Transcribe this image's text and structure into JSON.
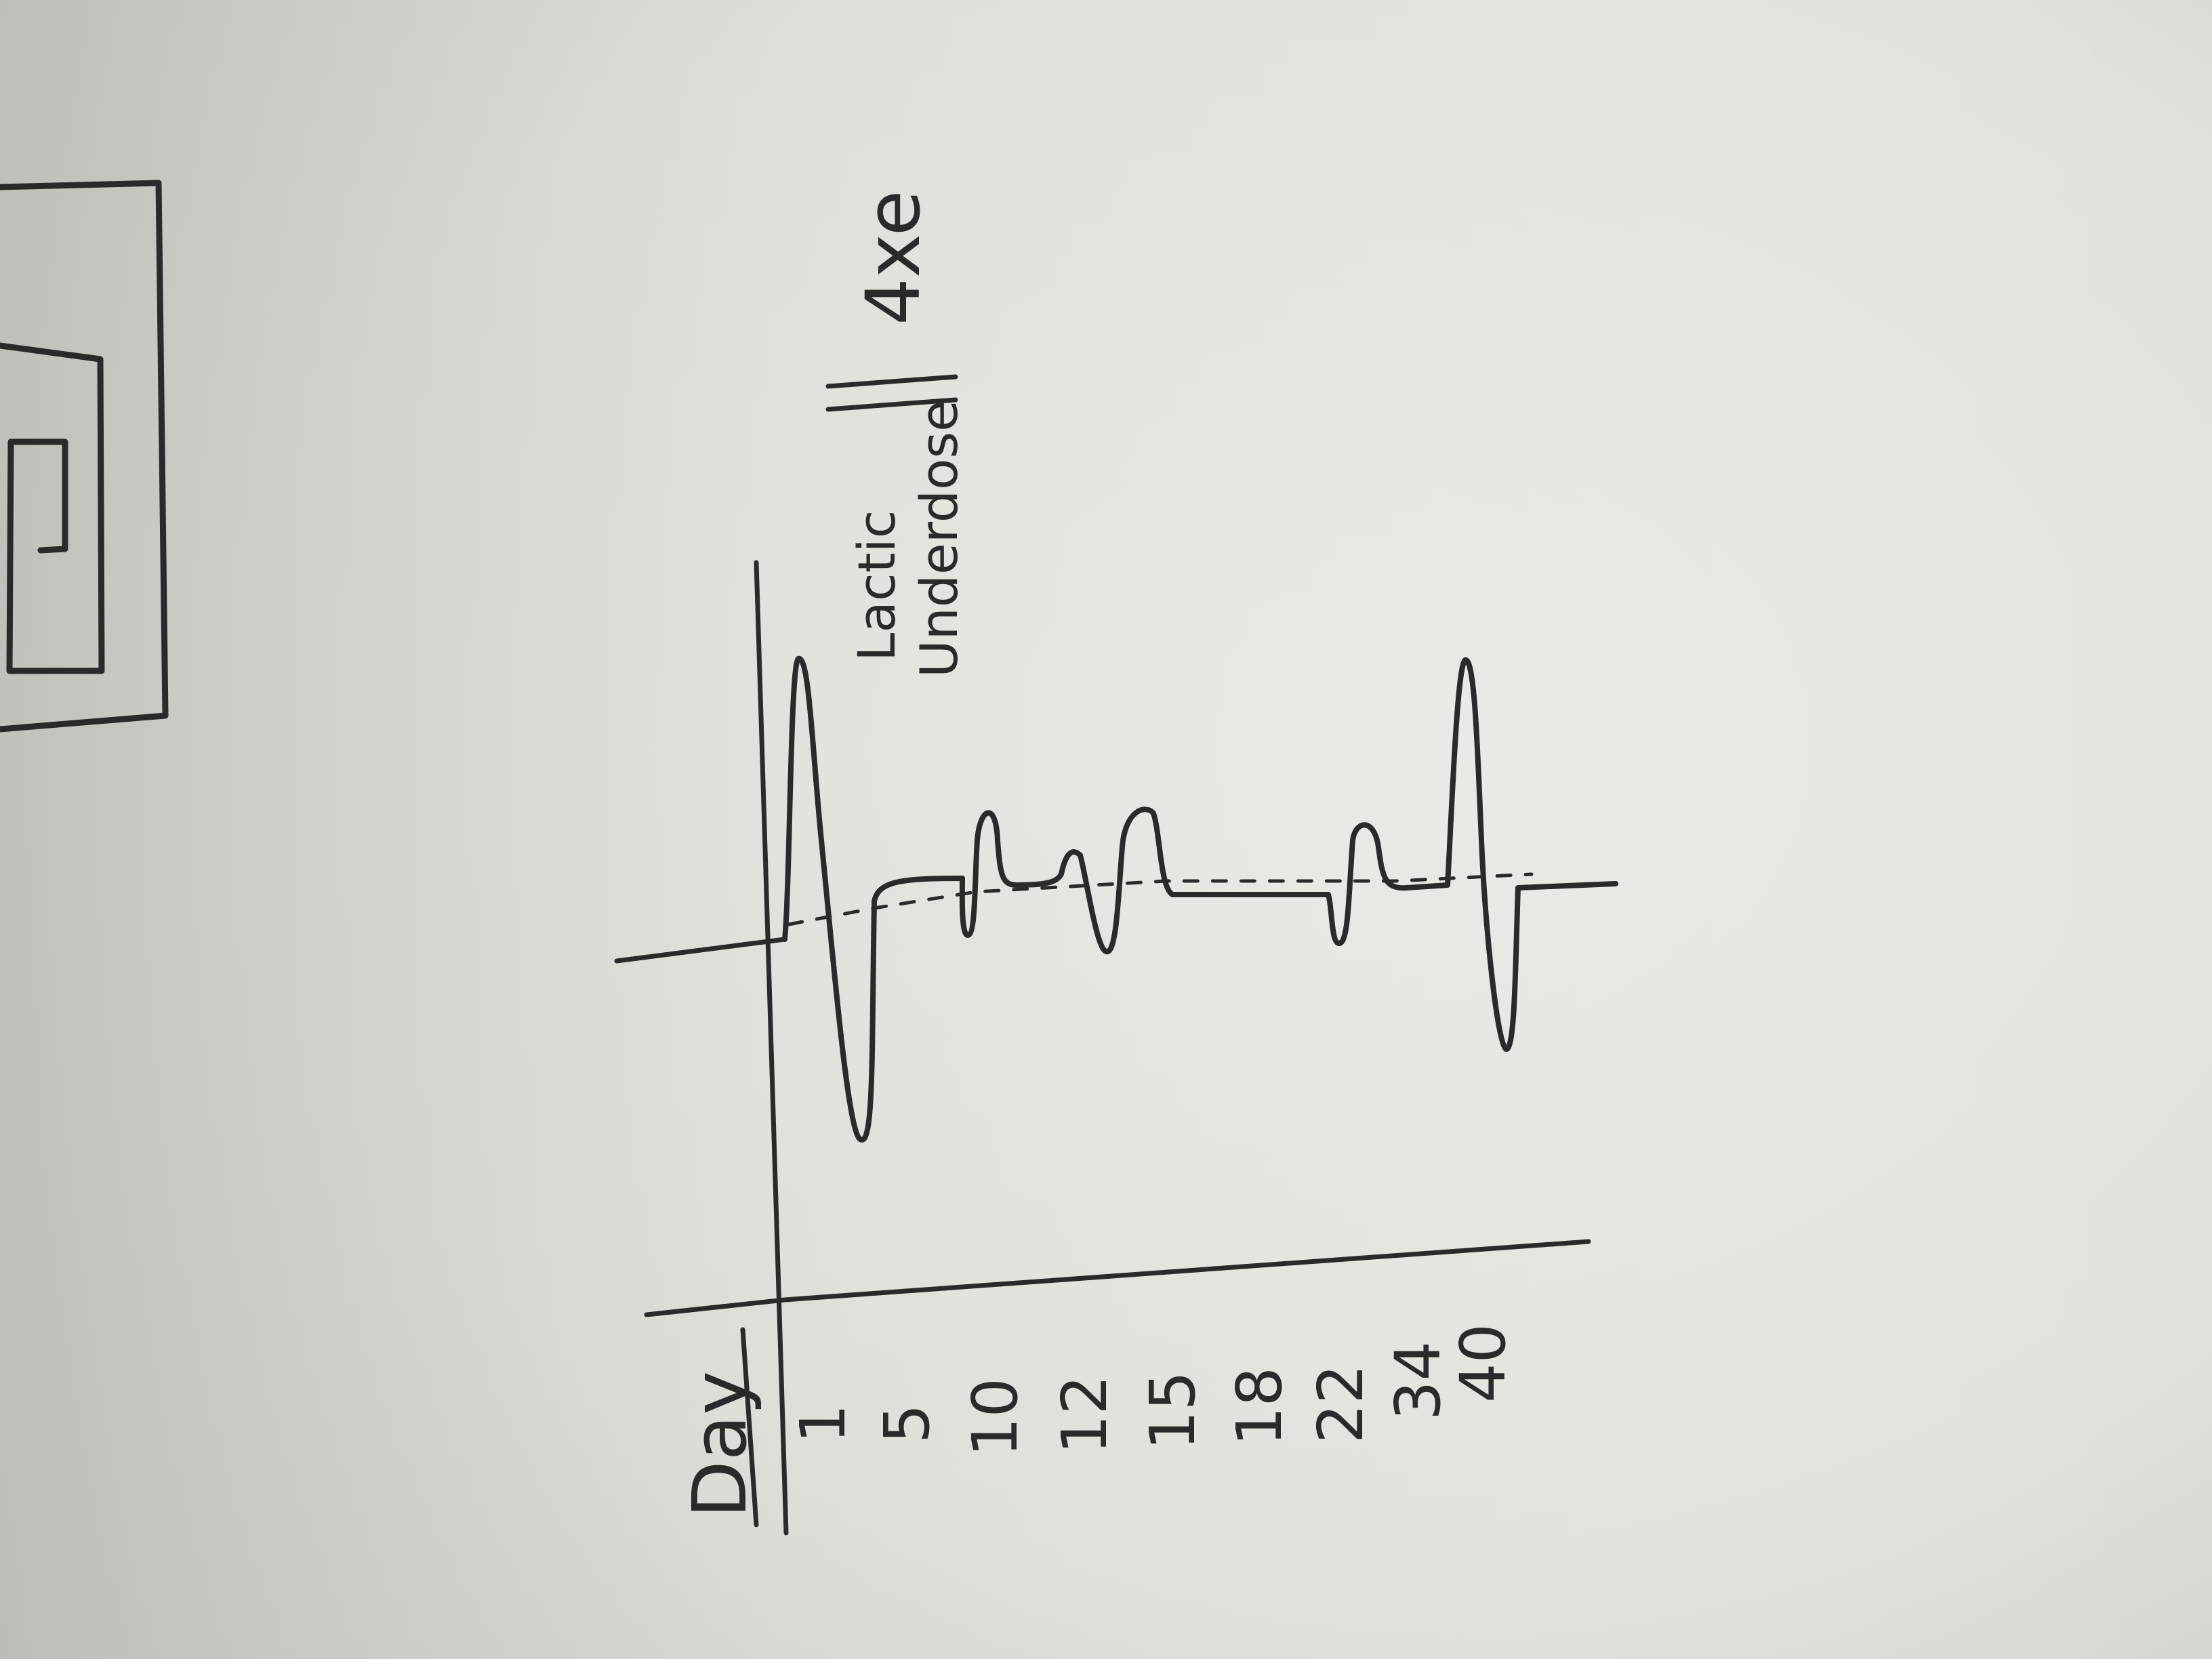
{
  "photo": {
    "paper_color": "#e4e3de",
    "ink_color": "#2a2a2a",
    "shadow_color": "#bfbdb6"
  },
  "sketch": {
    "row_header": "Day",
    "day_labels": [
      "1",
      "5",
      "10",
      "12",
      "15",
      "18",
      "22",
      "34",
      "40"
    ],
    "annotation_line1": "Lactic",
    "annotation_line2": "Underdose",
    "annotation_right": "4xe"
  }
}
